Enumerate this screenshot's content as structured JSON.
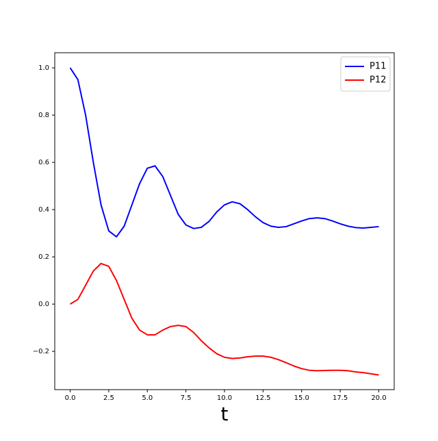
{
  "chart_data": {
    "type": "line",
    "xlabel": "t",
    "x": [
      0,
      0.5,
      1,
      1.5,
      2,
      2.5,
      3,
      3.5,
      4,
      4.5,
      5,
      5.5,
      6,
      6.5,
      7,
      7.5,
      8,
      8.5,
      9,
      9.5,
      10,
      10.5,
      11,
      11.5,
      12,
      12.5,
      13,
      13.5,
      14,
      14.5,
      15,
      15.5,
      16,
      16.5,
      17,
      17.5,
      18,
      18.5,
      19,
      19.5,
      20
    ],
    "series": [
      {
        "name": "P11",
        "color": "#0000ff",
        "values": [
          1.0,
          0.95,
          0.8,
          0.6,
          0.42,
          0.31,
          0.285,
          0.33,
          0.42,
          0.51,
          0.575,
          0.585,
          0.54,
          0.46,
          0.38,
          0.335,
          0.32,
          0.325,
          0.35,
          0.39,
          0.42,
          0.433,
          0.425,
          0.4,
          0.37,
          0.345,
          0.33,
          0.325,
          0.328,
          0.34,
          0.352,
          0.362,
          0.365,
          0.362,
          0.352,
          0.34,
          0.33,
          0.324,
          0.322,
          0.325,
          0.328
        ]
      },
      {
        "name": "P12",
        "color": "#ff0000",
        "values": [
          0.0,
          0.02,
          0.08,
          0.14,
          0.172,
          0.16,
          0.1,
          0.02,
          -0.06,
          -0.11,
          -0.13,
          -0.13,
          -0.11,
          -0.095,
          -0.09,
          -0.095,
          -0.12,
          -0.155,
          -0.185,
          -0.21,
          -0.225,
          -0.23,
          -0.228,
          -0.223,
          -0.22,
          -0.22,
          -0.225,
          -0.235,
          -0.248,
          -0.262,
          -0.273,
          -0.28,
          -0.282,
          -0.281,
          -0.28,
          -0.28,
          -0.282,
          -0.287,
          -0.29,
          -0.295,
          -0.3
        ]
      }
    ],
    "xlim": [
      -1,
      21
    ],
    "ylim": [
      -0.362,
      1.064
    ],
    "xticks": [
      {
        "value": 0,
        "label": "0.0"
      },
      {
        "value": 2.5,
        "label": "2.5"
      },
      {
        "value": 5,
        "label": "5.0"
      },
      {
        "value": 7.5,
        "label": "7.5"
      },
      {
        "value": 10,
        "label": "10.0"
      },
      {
        "value": 12.5,
        "label": "12.5"
      },
      {
        "value": 15,
        "label": "15.0"
      },
      {
        "value": 17.5,
        "label": "17.5"
      },
      {
        "value": 20,
        "label": "20.0"
      }
    ],
    "yticks": [
      {
        "value": -0.2,
        "label": "−0.2"
      },
      {
        "value": 0,
        "label": "0.0"
      },
      {
        "value": 0.2,
        "label": "0.2"
      },
      {
        "value": 0.4,
        "label": "0.4"
      },
      {
        "value": 0.6,
        "label": "0.6"
      },
      {
        "value": 0.8,
        "label": "0.8"
      },
      {
        "value": 1.0,
        "label": "1.0"
      }
    ],
    "grid": false,
    "legend": "upper right"
  }
}
